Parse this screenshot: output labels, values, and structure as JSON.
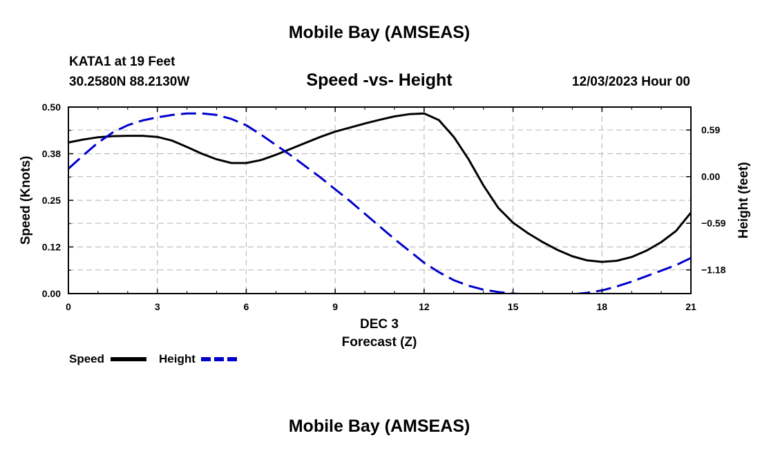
{
  "header": {
    "title": "Mobile Bay (AMSEAS)",
    "station": "KATA1 at 19 Feet",
    "coordinates": "30.2580N  88.2130W",
    "subtitle": "Speed -vs- Height",
    "datetime": "12/03/2023 Hour 00"
  },
  "footer": {
    "title": "Mobile Bay (AMSEAS)"
  },
  "chart_data": {
    "type": "line",
    "title": "Speed -vs- Height",
    "xlabel_line1": "DEC 3",
    "xlabel": "Forecast (Z)",
    "ylabel": "Speed (Knots)",
    "y2label": "Height (feet)",
    "xlim": [
      0,
      21
    ],
    "ylim": [
      0,
      0.5
    ],
    "y2lim": [
      -1.48,
      0.88
    ],
    "grid": true,
    "x_ticks": [
      0,
      3,
      6,
      9,
      12,
      15,
      18,
      21
    ],
    "x_tick_labels": [
      "0",
      "3",
      "6",
      "9",
      "12",
      "15",
      "18",
      "21"
    ],
    "y_ticks": [
      0,
      0.125,
      0.25,
      0.375,
      0.5
    ],
    "y_tick_labels": [
      "0.00",
      "0.12",
      "0.25",
      "0.38",
      "0.50"
    ],
    "y2_ticks": [
      0.59,
      0,
      -0.59,
      -1.18
    ],
    "y2_tick_labels": [
      "0.59",
      "0.00",
      "−0.59",
      "−1.18"
    ],
    "legend_position": "bottom-left",
    "series": [
      {
        "name": "Speed",
        "axis": "left",
        "color": "#000000",
        "style": "solid",
        "x": [
          0,
          0.5,
          1,
          1.5,
          2,
          2.5,
          3,
          3.5,
          4,
          4.5,
          5,
          5.5,
          6,
          6.5,
          7,
          7.5,
          8,
          8.5,
          9,
          9.5,
          10,
          10.5,
          11,
          11.5,
          12,
          12.5,
          13,
          13.5,
          14,
          14.5,
          15,
          15.5,
          16,
          16.5,
          17,
          17.5,
          18,
          18.5,
          19,
          19.5,
          20,
          20.5,
          21
        ],
        "values": [
          0.405,
          0.413,
          0.419,
          0.422,
          0.423,
          0.423,
          0.42,
          0.41,
          0.393,
          0.375,
          0.36,
          0.35,
          0.35,
          0.358,
          0.372,
          0.388,
          0.404,
          0.42,
          0.434,
          0.445,
          0.456,
          0.466,
          0.475,
          0.481,
          0.483,
          0.465,
          0.42,
          0.36,
          0.29,
          0.23,
          0.19,
          0.162,
          0.138,
          0.117,
          0.1,
          0.089,
          0.085,
          0.088,
          0.098,
          0.115,
          0.138,
          0.168,
          0.217
        ]
      },
      {
        "name": "Height",
        "axis": "right",
        "color": "#0000cc",
        "style": "dashed",
        "x": [
          0,
          0.5,
          1,
          1.5,
          2,
          2.5,
          3,
          3.5,
          4,
          4.5,
          5,
          5.5,
          6,
          6.5,
          7,
          7.5,
          8,
          8.5,
          9,
          9.5,
          10,
          10.5,
          11,
          11.5,
          12,
          12.5,
          13,
          13.5,
          14,
          14.5,
          15,
          15.5,
          16,
          16.5,
          17,
          17.5,
          18,
          18.5,
          19,
          19.5,
          20,
          20.5,
          21
        ],
        "values": [
          0.1,
          0.27,
          0.43,
          0.56,
          0.65,
          0.71,
          0.75,
          0.78,
          0.8,
          0.8,
          0.78,
          0.73,
          0.65,
          0.53,
          0.4,
          0.27,
          0.13,
          -0.01,
          -0.16,
          -0.31,
          -0.47,
          -0.63,
          -0.79,
          -0.94,
          -1.09,
          -1.21,
          -1.31,
          -1.38,
          -1.43,
          -1.46,
          -1.48,
          -1.49,
          -1.5,
          -1.5,
          -1.49,
          -1.47,
          -1.44,
          -1.39,
          -1.33,
          -1.26,
          -1.19,
          -1.12,
          -1.03
        ]
      }
    ]
  }
}
